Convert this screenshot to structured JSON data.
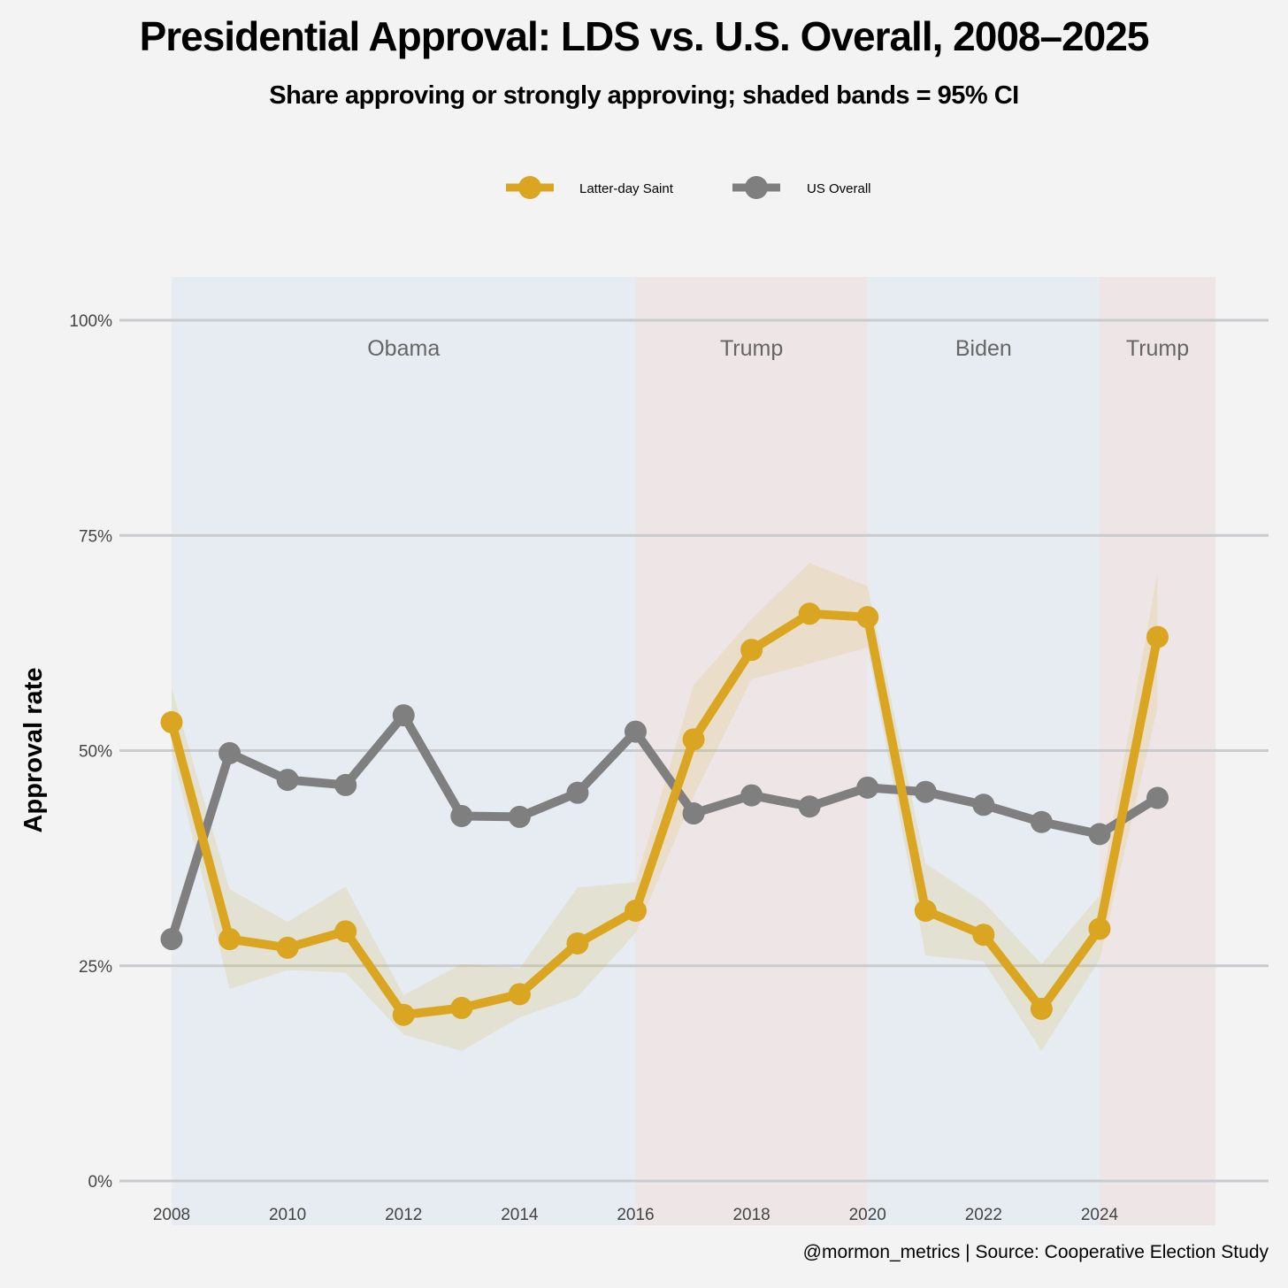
{
  "title": "Presidential Approval: LDS vs. U.S. Overall, 2008–2025",
  "subtitle": "Share approving or strongly approving; shaded bands = 95% CI",
  "caption": "@mormon_metrics | Source: Cooperative Election Study",
  "colors": {
    "lds": "#DAA520",
    "us": "#7F7F7F",
    "dem": "#e6ecf1",
    "rep": "#eee6e6",
    "ci": "#e6e2cc",
    "ci_rep": "#ecdfce"
  },
  "chart_data": {
    "type": "line",
    "title": "Presidential Approval: LDS vs. U.S. Overall, 2008–2025",
    "xlabel": "",
    "ylabel": "Approval rate",
    "ylim": [
      0,
      100
    ],
    "xlim": [
      2007.2,
      2027
    ],
    "x_ticks": [
      2008,
      2010,
      2012,
      2014,
      2016,
      2018,
      2020,
      2022,
      2024
    ],
    "y_ticks": [
      0,
      25,
      50,
      75,
      100
    ],
    "y_tick_labels": [
      "0%",
      "25%",
      "50%",
      "75%",
      "100%"
    ],
    "legend_position": "top",
    "x": [
      2008,
      2009,
      2010,
      2011,
      2012,
      2013,
      2014,
      2015,
      2016,
      2017,
      2018,
      2019,
      2020,
      2021,
      2022,
      2023,
      2024,
      2025
    ],
    "series": [
      {
        "name": "Latter-day Saint",
        "color": "#DAA520",
        "values": [
          53.3,
          28.1,
          27.1,
          29.0,
          19.3,
          20.1,
          21.7,
          27.6,
          31.4,
          51.3,
          61.7,
          65.9,
          65.5,
          31.4,
          28.6,
          20.0,
          29.3,
          63.2
        ],
        "ci_low": [
          50.0,
          22.3,
          24.5,
          24.2,
          17.0,
          15.1,
          19.0,
          21.4,
          28.8,
          44.7,
          58.3,
          60.1,
          62.0,
          26.2,
          25.5,
          15.1,
          25.7,
          55.0
        ],
        "ci_high": [
          57.3,
          33.9,
          30.1,
          34.2,
          21.6,
          25.2,
          24.7,
          34.1,
          34.7,
          57.6,
          65.3,
          71.8,
          69.1,
          36.9,
          32.4,
          25.2,
          33.2,
          70.7
        ]
      },
      {
        "name": "US Overall",
        "color": "#7F7F7F",
        "values": [
          28.1,
          49.7,
          46.6,
          46.0,
          54.1,
          42.4,
          42.3,
          45.1,
          52.2,
          42.7,
          44.8,
          43.5,
          45.7,
          45.2,
          43.7,
          41.7,
          40.3,
          44.5
        ]
      }
    ],
    "eras": [
      {
        "label": "Obama",
        "start": 2008,
        "end": 2016,
        "party": "dem"
      },
      {
        "label": "Trump",
        "start": 2016,
        "end": 2020,
        "party": "rep"
      },
      {
        "label": "Biden",
        "start": 2020,
        "end": 2024,
        "party": "dem"
      },
      {
        "label": "Trump",
        "start": 2024,
        "end": 2026,
        "party": "rep"
      }
    ]
  }
}
